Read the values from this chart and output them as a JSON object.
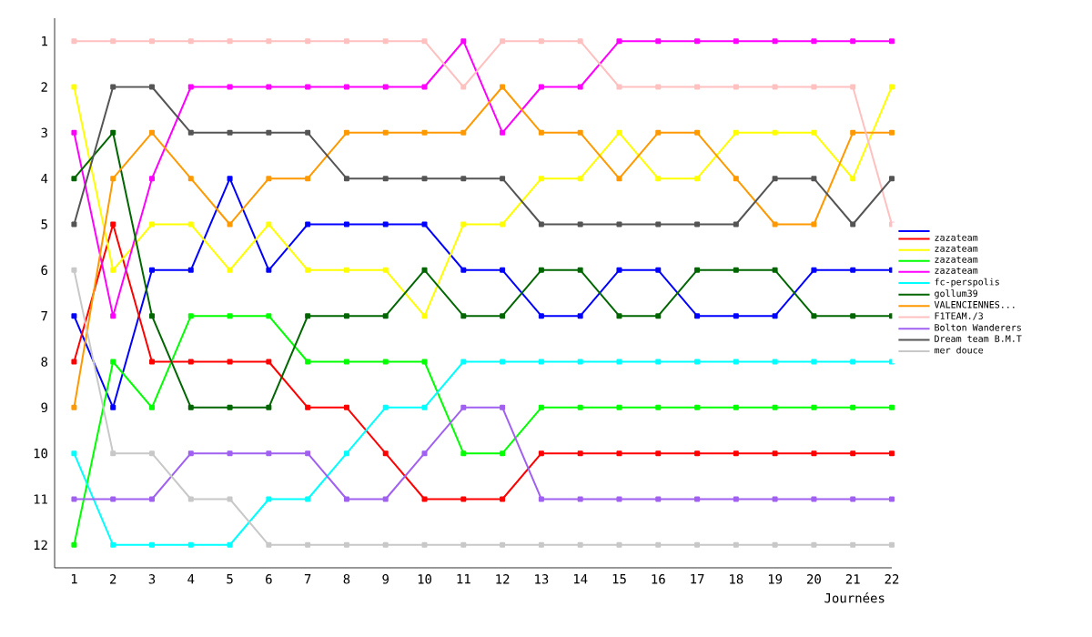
{
  "chart_data": {
    "type": "line",
    "xlabel": "Journées",
    "x": [
      1,
      2,
      3,
      4,
      5,
      6,
      7,
      8,
      9,
      10,
      11,
      12,
      13,
      14,
      15,
      16,
      17,
      18,
      19,
      20,
      21,
      22
    ],
    "xlim": [
      0.5,
      22
    ],
    "xticks": [
      1,
      2,
      3,
      4,
      5,
      6,
      7,
      8,
      9,
      10,
      11,
      12,
      13,
      14,
      15,
      16,
      17,
      18,
      19,
      20,
      21,
      22
    ],
    "ylim": [
      12.5,
      0.5
    ],
    "yticks": [
      1,
      2,
      3,
      4,
      5,
      6,
      7,
      8,
      9,
      10,
      11,
      12
    ],
    "legend": "right",
    "marker": "square",
    "line_style": "solid",
    "grid": false,
    "series": [
      {
        "color": "#0000ff",
        "values": [
          7,
          9,
          6,
          6,
          4,
          6,
          5,
          5,
          5,
          5,
          6,
          6,
          7,
          7,
          6,
          6,
          7,
          7,
          7,
          6,
          6,
          6
        ]
      },
      {
        "name": "zazateam",
        "color": "#ff0000",
        "values": [
          8,
          5,
          8,
          8,
          8,
          8,
          9,
          9,
          10,
          11,
          11,
          11,
          10,
          10,
          10,
          10,
          10,
          10,
          10,
          10,
          10,
          10
        ]
      },
      {
        "name": "zazateam",
        "color": "#ffff00",
        "values": [
          2,
          6,
          5,
          5,
          6,
          5,
          6,
          6,
          6,
          7,
          5,
          5,
          4,
          4,
          3,
          4,
          4,
          3,
          3,
          3,
          4,
          2
        ]
      },
      {
        "name": "zazateam",
        "color": "#00ff00",
        "values": [
          12,
          8,
          9,
          7,
          7,
          7,
          8,
          8,
          8,
          8,
          10,
          10,
          9,
          9,
          9,
          9,
          9,
          9,
          9,
          9,
          9,
          9
        ]
      },
      {
        "name": "zazateam",
        "color": "#ff00ff",
        "values": [
          3,
          7,
          4,
          2,
          2,
          2,
          2,
          2,
          2,
          2,
          1,
          3,
          2,
          2,
          1,
          1,
          1,
          1,
          1,
          1,
          1,
          1
        ]
      },
      {
        "name": "fc-perspolis",
        "color": "#00ffff",
        "values": [
          10,
          12,
          12,
          12,
          12,
          11,
          11,
          10,
          9,
          9,
          8,
          8,
          8,
          8,
          8,
          8,
          8,
          8,
          8,
          8,
          8,
          8
        ]
      },
      {
        "name": "gollum39",
        "color": "#006600",
        "values": [
          4,
          3,
          7,
          9,
          9,
          9,
          7,
          7,
          7,
          6,
          7,
          7,
          6,
          6,
          7,
          7,
          6,
          6,
          6,
          7,
          7,
          7
        ]
      },
      {
        "name": "VALENCIENNES...",
        "color": "#ff9900",
        "values": [
          9,
          4,
          3,
          4,
          5,
          4,
          4,
          3,
          3,
          3,
          3,
          2,
          3,
          3,
          4,
          3,
          3,
          4,
          5,
          5,
          3,
          3
        ]
      },
      {
        "name": "F1TEAM./3",
        "color": "#ffc0c0",
        "values": [
          1,
          1,
          1,
          1,
          1,
          1,
          1,
          1,
          1,
          1,
          2,
          1,
          1,
          1,
          2,
          2,
          2,
          2,
          2,
          2,
          2,
          5
        ]
      },
      {
        "name": "Bolton Wanderers",
        "color": "#a060f0",
        "values": [
          11,
          11,
          11,
          10,
          10,
          10,
          10,
          11,
          11,
          10,
          9,
          9,
          11,
          11,
          11,
          11,
          11,
          11,
          11,
          11,
          11,
          11
        ]
      },
      {
        "name": "Dream team B.M.T",
        "color": "#555555",
        "values": [
          5,
          2,
          2,
          3,
          3,
          3,
          3,
          4,
          4,
          4,
          4,
          4,
          5,
          5,
          5,
          5,
          5,
          5,
          4,
          4,
          5,
          4
        ]
      },
      {
        "name": "mer douce",
        "color": "#c8c8c8",
        "values": [
          6,
          10,
          10,
          11,
          11,
          12,
          12,
          12,
          12,
          12,
          12,
          12,
          12,
          12,
          12,
          12,
          12,
          12,
          12,
          12,
          12,
          12
        ]
      }
    ]
  }
}
